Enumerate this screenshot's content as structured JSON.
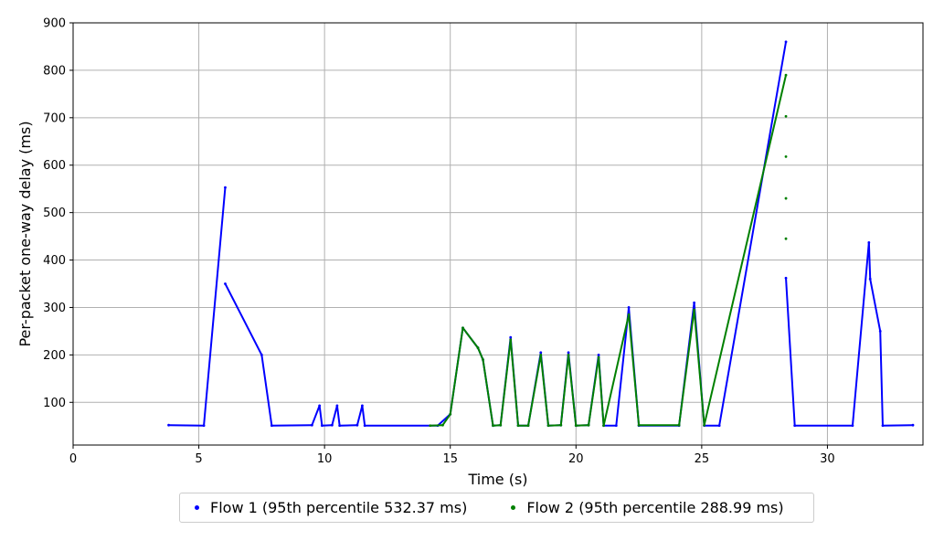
{
  "chart_data": {
    "type": "scatter",
    "title": "",
    "xlabel": "Time (s)",
    "ylabel": "Per-packet one-way delay (ms)",
    "xlim": [
      0,
      33.8
    ],
    "ylim": [
      10,
      900
    ],
    "xticks": [
      0,
      5,
      10,
      15,
      20,
      25,
      30
    ],
    "yticks": [
      100,
      200,
      300,
      400,
      500,
      600,
      700,
      800,
      900
    ],
    "grid": true,
    "legend_position": "bottom-center",
    "series": [
      {
        "name": "Flow 1 (95th percentile 532.37 ms)",
        "color": "#0000ff",
        "points": [
          [
            3.8,
            52
          ],
          [
            5.2,
            51
          ],
          [
            6.05,
            553
          ],
          [
            6.05,
            350
          ],
          [
            7.5,
            200
          ],
          [
            7.9,
            51
          ],
          [
            9.5,
            52
          ],
          [
            9.8,
            93
          ],
          [
            9.9,
            51
          ],
          [
            10.3,
            52
          ],
          [
            10.5,
            93
          ],
          [
            10.6,
            51
          ],
          [
            11.3,
            52
          ],
          [
            11.5,
            93
          ],
          [
            11.6,
            51
          ],
          [
            14.5,
            51
          ],
          [
            15.0,
            75
          ],
          [
            15.5,
            257
          ],
          [
            16.1,
            215
          ],
          [
            16.3,
            190
          ],
          [
            16.7,
            51
          ],
          [
            17.0,
            52
          ],
          [
            17.4,
            237
          ],
          [
            17.7,
            51
          ],
          [
            18.1,
            51
          ],
          [
            18.6,
            205
          ],
          [
            18.9,
            51
          ],
          [
            19.4,
            52
          ],
          [
            19.7,
            205
          ],
          [
            20.0,
            51
          ],
          [
            20.5,
            52
          ],
          [
            20.9,
            200
          ],
          [
            21.1,
            51
          ],
          [
            21.6,
            51
          ],
          [
            22.1,
            300
          ],
          [
            22.5,
            51
          ],
          [
            24.1,
            51
          ],
          [
            24.7,
            310
          ],
          [
            25.1,
            51
          ],
          [
            25.7,
            51
          ],
          [
            28.35,
            860
          ],
          [
            28.35,
            362
          ],
          [
            28.7,
            51
          ],
          [
            31.0,
            51
          ],
          [
            31.65,
            437
          ],
          [
            31.7,
            360
          ],
          [
            32.1,
            250
          ],
          [
            32.2,
            51
          ],
          [
            33.4,
            52
          ]
        ]
      },
      {
        "name": "Flow 2 (95th percentile 288.99 ms)",
        "color": "#008000",
        "points": [
          [
            14.2,
            51
          ],
          [
            14.7,
            52
          ],
          [
            15.0,
            75
          ],
          [
            15.5,
            257
          ],
          [
            16.1,
            215
          ],
          [
            16.3,
            190
          ],
          [
            16.7,
            51
          ],
          [
            17.0,
            52
          ],
          [
            17.4,
            232
          ],
          [
            17.7,
            51
          ],
          [
            18.1,
            51
          ],
          [
            18.6,
            200
          ],
          [
            18.9,
            51
          ],
          [
            19.4,
            52
          ],
          [
            19.7,
            200
          ],
          [
            20.0,
            51
          ],
          [
            20.5,
            52
          ],
          [
            20.9,
            195
          ],
          [
            21.1,
            51
          ],
          [
            22.1,
            285
          ],
          [
            22.5,
            52
          ],
          [
            24.1,
            52
          ],
          [
            24.7,
            295
          ],
          [
            25.1,
            52
          ],
          [
            28.35,
            790
          ],
          [
            28.35,
            703
          ],
          [
            28.35,
            618
          ],
          [
            28.35,
            530
          ],
          [
            28.35,
            445
          ]
        ]
      }
    ]
  }
}
